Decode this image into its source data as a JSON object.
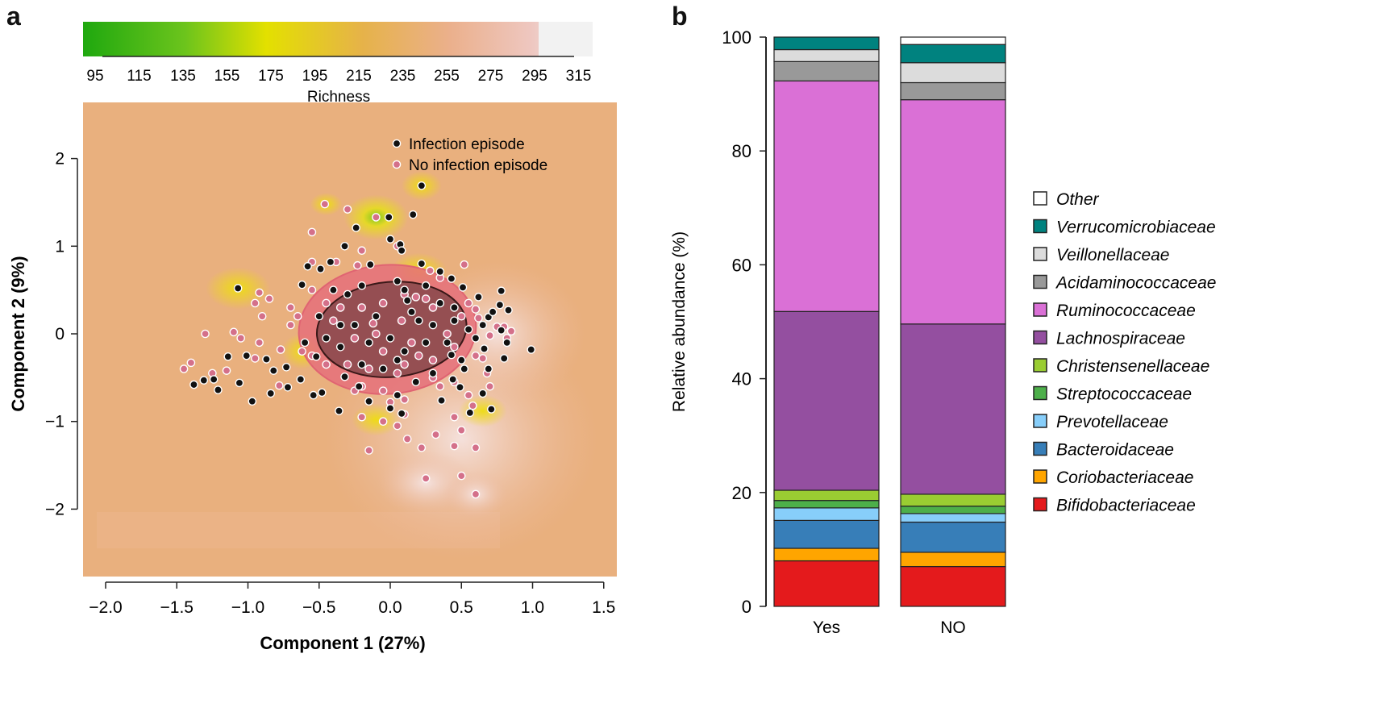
{
  "panels": {
    "a": "a",
    "b": "b"
  },
  "chart_data": [
    {
      "type": "scatter",
      "xlabel": "Component 1 (27%)",
      "ylabel": "Component 2 (9%)",
      "xlim": [
        -2.16,
        1.59
      ],
      "ylim": [
        -2.77,
        2.64
      ],
      "x_ticks": [
        "−2.0",
        "−1.5",
        "−1.0",
        "−0.5",
        "0.0",
        "0.5",
        "1.0",
        "1.5"
      ],
      "x_tick_values": [
        -2.0,
        -1.5,
        -1.0,
        -0.5,
        0.0,
        0.5,
        1.0,
        1.5
      ],
      "y_ticks": [
        "2",
        "1",
        "0",
        "−1",
        "−2"
      ],
      "y_tick_values": [
        2,
        1,
        0,
        -1,
        -2
      ],
      "legend_position": "top-right",
      "background": "richness contour surface",
      "colorbar": {
        "label": "Richness",
        "ticks": [
          "95",
          "115",
          "135",
          "155",
          "175",
          "195",
          "215",
          "235",
          "255",
          "275",
          "295",
          "315"
        ],
        "colors": [
          "#1fa80f",
          "#6cc41c",
          "#e3e000",
          "#e6b24a",
          "#ebb08c",
          "#eec7c0",
          "#f2f2f2"
        ]
      },
      "series": [
        {
          "name": "Infection episode",
          "color": "#111111",
          "points": [
            [
              0.22,
              1.69
            ],
            [
              -0.01,
              1.33
            ],
            [
              0.16,
              1.36
            ],
            [
              -0.24,
              1.21
            ],
            [
              -0.32,
              1.0
            ],
            [
              0.0,
              1.08
            ],
            [
              0.07,
              1.02
            ],
            [
              0.08,
              0.95
            ],
            [
              -1.07,
              0.52
            ],
            [
              -0.62,
              0.56
            ],
            [
              -0.49,
              0.74
            ],
            [
              -0.58,
              0.77
            ],
            [
              -0.42,
              0.82
            ],
            [
              -0.14,
              0.79
            ],
            [
              0.22,
              0.8
            ],
            [
              0.35,
              0.71
            ],
            [
              0.43,
              0.63
            ],
            [
              0.51,
              0.53
            ],
            [
              0.62,
              0.42
            ],
            [
              0.77,
              0.33
            ],
            [
              0.83,
              0.27
            ],
            [
              0.78,
              0.49
            ],
            [
              0.69,
              0.19
            ],
            [
              0.78,
              0.04
            ],
            [
              0.82,
              -0.1
            ],
            [
              0.99,
              -0.18
            ],
            [
              0.8,
              -0.28
            ],
            [
              0.66,
              -0.17
            ],
            [
              0.69,
              -0.4
            ],
            [
              0.65,
              -0.68
            ],
            [
              0.71,
              -0.86
            ],
            [
              0.56,
              -0.9
            ],
            [
              0.49,
              -0.61
            ],
            [
              0.44,
              -0.52
            ],
            [
              0.36,
              -0.76
            ],
            [
              0.52,
              -0.4
            ],
            [
              0.43,
              -0.24
            ],
            [
              -0.52,
              -0.26
            ],
            [
              -0.48,
              -0.67
            ],
            [
              -0.54,
              -0.7
            ],
            [
              -0.63,
              -0.52
            ],
            [
              -0.73,
              -0.38
            ],
            [
              -0.82,
              -0.42
            ],
            [
              -0.87,
              -0.29
            ],
            [
              -1.01,
              -0.25
            ],
            [
              -1.14,
              -0.26
            ],
            [
              -1.24,
              -0.52
            ],
            [
              -1.38,
              -0.58
            ],
            [
              -1.31,
              -0.53
            ],
            [
              -1.06,
              -0.56
            ],
            [
              -0.97,
              -0.77
            ],
            [
              -1.21,
              -0.64
            ],
            [
              -0.84,
              -0.68
            ],
            [
              -0.72,
              -0.61
            ],
            [
              -0.22,
              -0.6
            ],
            [
              -0.15,
              -0.77
            ],
            [
              0.0,
              -0.85
            ],
            [
              0.08,
              -0.91
            ],
            [
              -0.32,
              -0.49
            ],
            [
              0.05,
              -0.7
            ],
            [
              -0.36,
              -0.88
            ],
            [
              -0.4,
              0.5
            ],
            [
              -0.3,
              0.45
            ],
            [
              -0.2,
              0.55
            ],
            [
              0.05,
              0.6
            ],
            [
              0.1,
              0.5
            ],
            [
              0.12,
              0.38
            ],
            [
              0.15,
              0.25
            ],
            [
              -0.1,
              0.2
            ],
            [
              -0.25,
              0.1
            ],
            [
              -0.35,
              0.1
            ],
            [
              -0.45,
              -0.05
            ],
            [
              -0.35,
              -0.15
            ],
            [
              -0.15,
              -0.1
            ],
            [
              0.0,
              -0.05
            ],
            [
              0.1,
              -0.2
            ],
            [
              0.25,
              -0.1
            ],
            [
              0.3,
              0.1
            ],
            [
              0.35,
              0.35
            ],
            [
              0.45,
              0.3
            ],
            [
              0.45,
              0.15
            ],
            [
              0.2,
              0.15
            ],
            [
              0.05,
              -0.3
            ],
            [
              -0.05,
              -0.4
            ],
            [
              0.4,
              -0.1
            ],
            [
              0.55,
              0.05
            ],
            [
              0.6,
              -0.05
            ],
            [
              -0.5,
              0.2
            ],
            [
              0.3,
              -0.45
            ],
            [
              0.18,
              -0.55
            ],
            [
              -0.2,
              -0.35
            ],
            [
              0.5,
              -0.3
            ],
            [
              0.65,
              0.1
            ],
            [
              0.72,
              0.25
            ],
            [
              -0.6,
              -0.1
            ],
            [
              0.25,
              0.55
            ]
          ]
        },
        {
          "name": "No infection episode",
          "color": "#d4708a",
          "points": [
            [
              -0.46,
              1.48
            ],
            [
              -0.3,
              1.42
            ],
            [
              -0.1,
              1.33
            ],
            [
              -0.55,
              1.16
            ],
            [
              0.05,
              1.0
            ],
            [
              -0.2,
              0.95
            ],
            [
              -0.55,
              0.82
            ],
            [
              -0.38,
              0.82
            ],
            [
              -0.23,
              0.78
            ],
            [
              0.52,
              0.79
            ],
            [
              0.35,
              0.64
            ],
            [
              0.28,
              0.72
            ],
            [
              -1.4,
              -0.33
            ],
            [
              -1.45,
              -0.4
            ],
            [
              -1.3,
              0.0
            ],
            [
              -1.1,
              0.02
            ],
            [
              -1.05,
              -0.05
            ],
            [
              -0.92,
              -0.1
            ],
            [
              -0.9,
              0.2
            ],
            [
              -0.95,
              0.35
            ],
            [
              -0.92,
              0.47
            ],
            [
              -0.85,
              0.4
            ],
            [
              -0.77,
              -0.18
            ],
            [
              -0.7,
              0.1
            ],
            [
              -0.78,
              -0.59
            ],
            [
              -0.95,
              -0.28
            ],
            [
              -1.15,
              -0.42
            ],
            [
              -1.25,
              -0.45
            ],
            [
              -0.62,
              -0.2
            ],
            [
              -0.65,
              0.2
            ],
            [
              -0.7,
              0.3
            ],
            [
              -0.55,
              0.5
            ],
            [
              -0.45,
              0.35
            ],
            [
              -0.35,
              0.3
            ],
            [
              -0.2,
              0.3
            ],
            [
              -0.05,
              0.35
            ],
            [
              0.1,
              0.45
            ],
            [
              0.18,
              0.42
            ],
            [
              0.25,
              0.4
            ],
            [
              0.3,
              0.3
            ],
            [
              -0.4,
              0.15
            ],
            [
              -0.25,
              -0.05
            ],
            [
              -0.1,
              0.0
            ],
            [
              -0.05,
              -0.2
            ],
            [
              0.15,
              -0.1
            ],
            [
              0.2,
              -0.25
            ],
            [
              0.3,
              -0.3
            ],
            [
              0.4,
              0.0
            ],
            [
              0.45,
              -0.15
            ],
            [
              -0.3,
              -0.35
            ],
            [
              -0.15,
              -0.4
            ],
            [
              0.05,
              -0.45
            ],
            [
              0.1,
              -0.35
            ],
            [
              -0.45,
              -0.35
            ],
            [
              -0.55,
              -0.25
            ],
            [
              0.5,
              0.2
            ],
            [
              0.55,
              0.35
            ],
            [
              0.6,
              0.28
            ],
            [
              0.08,
              0.15
            ],
            [
              -0.12,
              0.12
            ],
            [
              0.35,
              -0.6
            ],
            [
              0.75,
              0.08
            ],
            [
              0.8,
              0.08
            ],
            [
              0.85,
              0.03
            ],
            [
              0.82,
              -0.05
            ],
            [
              0.7,
              -0.02
            ],
            [
              0.62,
              0.18
            ],
            [
              0.65,
              -0.28
            ],
            [
              0.6,
              -0.25
            ],
            [
              0.45,
              -0.55
            ],
            [
              0.58,
              -0.82
            ],
            [
              0.7,
              -0.6
            ],
            [
              0.3,
              -0.5
            ],
            [
              0.1,
              -0.75
            ],
            [
              -0.05,
              -0.65
            ],
            [
              -0.2,
              -0.6
            ],
            [
              0.5,
              -1.1
            ],
            [
              0.6,
              -1.3
            ],
            [
              0.45,
              -1.28
            ],
            [
              0.32,
              -1.15
            ],
            [
              0.12,
              -1.2
            ],
            [
              0.05,
              -1.05
            ],
            [
              -0.05,
              -1.0
            ],
            [
              0.22,
              -1.3
            ],
            [
              -0.15,
              -1.33
            ],
            [
              0.25,
              -1.65
            ],
            [
              0.5,
              -1.62
            ],
            [
              0.6,
              -1.83
            ],
            [
              0.1,
              -0.92
            ],
            [
              -0.2,
              -0.95
            ],
            [
              -0.25,
              -0.65
            ],
            [
              0.0,
              -0.78
            ],
            [
              0.45,
              -0.95
            ],
            [
              0.55,
              -0.7
            ],
            [
              0.68,
              -0.45
            ]
          ]
        }
      ]
    },
    {
      "type": "bar",
      "stacked": true,
      "categories": [
        "Yes",
        "NO"
      ],
      "ylabel": "Relative abundance (%)",
      "ylim": [
        0,
        100
      ],
      "y_ticks": [
        "0",
        "20",
        "40",
        "60",
        "80",
        "100"
      ],
      "y_tick_values": [
        0,
        20,
        40,
        60,
        80,
        100
      ],
      "legend_position": "right",
      "series": [
        {
          "name": "Bifidobacteriaceae",
          "color": "#e41a1c",
          "values": [
            8.0,
            7.0
          ]
        },
        {
          "name": "Coriobacteriaceae",
          "color": "#ffa500",
          "values": [
            2.2,
            2.5
          ]
        },
        {
          "name": "Bacteroidaceae",
          "color": "#377eb8",
          "values": [
            4.9,
            5.3
          ]
        },
        {
          "name": "Prevotellaceae",
          "color": "#87cefa",
          "values": [
            2.2,
            1.5
          ]
        },
        {
          "name": "Streptococcaceae",
          "color": "#4daf4a",
          "values": [
            1.3,
            1.3
          ]
        },
        {
          "name": "Christensenellaceae",
          "color": "#9acd32",
          "values": [
            1.8,
            2.1
          ]
        },
        {
          "name": "Lachnospiraceae",
          "color": "#944fa0",
          "values": [
            31.4,
            29.9
          ]
        },
        {
          "name": "Ruminococcaceae",
          "color": "#da70d6",
          "values": [
            40.5,
            39.4
          ]
        },
        {
          "name": "Acidaminococcaceae",
          "color": "#999999",
          "values": [
            3.4,
            3.0
          ]
        },
        {
          "name": "Veillonellaceae",
          "color": "#dcdcdc",
          "values": [
            2.1,
            3.5
          ]
        },
        {
          "name": "Verrucomicrobiaceae",
          "color": "#00827f",
          "values": [
            2.2,
            3.2
          ]
        },
        {
          "name": "Other",
          "color": "#ffffff",
          "values": [
            0.0,
            1.3
          ]
        }
      ]
    }
  ]
}
